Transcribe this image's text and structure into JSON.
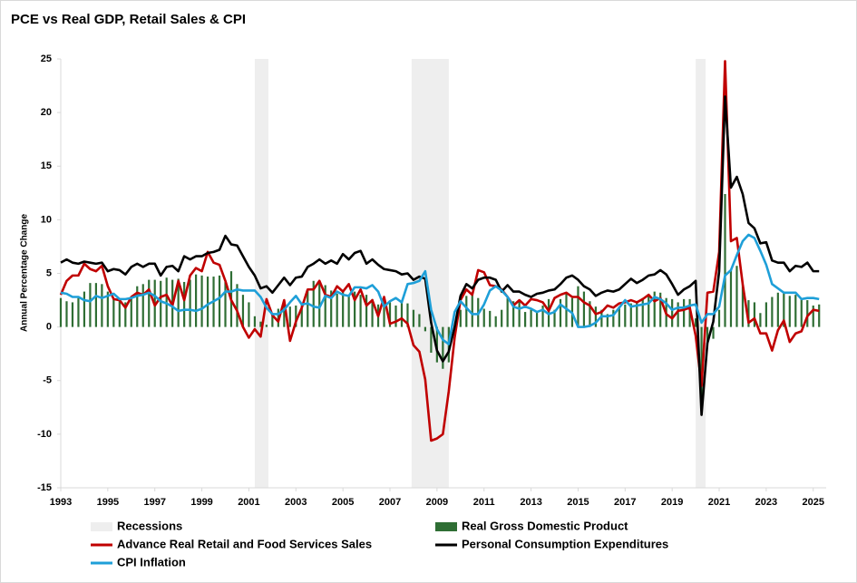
{
  "chart_data": {
    "type": "combo",
    "title": "PCE vs Real GDP, Retail Sales & CPI",
    "y_label": "Annual Percentage Change",
    "xlim": [
      1993,
      2025.55
    ],
    "ylim": [
      -15,
      25
    ],
    "xticks": [
      1993,
      1995,
      1997,
      1999,
      2001,
      2003,
      2005,
      2007,
      2009,
      2011,
      2013,
      2015,
      2017,
      2019,
      2021,
      2023,
      2025
    ],
    "yticks": [
      -15,
      -10,
      -5,
      0,
      5,
      10,
      15,
      20,
      25
    ],
    "recessions": {
      "name": "Recessions",
      "color": "#eeeeee",
      "ranges": [
        [
          2001.25,
          2001.83
        ],
        [
          2007.92,
          2009.5
        ],
        [
          2020.0,
          2020.42
        ]
      ]
    },
    "x": [
      1993,
      1993.25,
      1993.5,
      1993.75,
      1994,
      1994.25,
      1994.5,
      1994.75,
      1995,
      1995.25,
      1995.5,
      1995.75,
      1996,
      1996.25,
      1996.5,
      1996.75,
      1997,
      1997.25,
      1997.5,
      1997.75,
      1998,
      1998.25,
      1998.5,
      1998.75,
      1999,
      1999.25,
      1999.5,
      1999.75,
      2000,
      2000.25,
      2000.5,
      2000.75,
      2001,
      2001.25,
      2001.5,
      2001.75,
      2002,
      2002.25,
      2002.5,
      2002.75,
      2003,
      2003.25,
      2003.5,
      2003.75,
      2004,
      2004.25,
      2004.5,
      2004.75,
      2005,
      2005.25,
      2005.5,
      2005.75,
      2006,
      2006.25,
      2006.5,
      2006.75,
      2007,
      2007.25,
      2007.5,
      2007.75,
      2008,
      2008.25,
      2008.5,
      2008.75,
      2009,
      2009.25,
      2009.5,
      2009.75,
      2010,
      2010.25,
      2010.5,
      2010.75,
      2011,
      2011.25,
      2011.5,
      2011.75,
      2012,
      2012.25,
      2012.5,
      2012.75,
      2013,
      2013.25,
      2013.5,
      2013.75,
      2014,
      2014.25,
      2014.5,
      2014.75,
      2015,
      2015.25,
      2015.5,
      2015.75,
      2016,
      2016.25,
      2016.5,
      2016.75,
      2017,
      2017.25,
      2017.5,
      2017.75,
      2018,
      2018.25,
      2018.5,
      2018.75,
      2019,
      2019.25,
      2019.5,
      2019.75,
      2020,
      2020.25,
      2020.5,
      2020.75,
      2021,
      2021.25,
      2021.5,
      2021.75,
      2022,
      2022.25,
      2022.5,
      2022.75,
      2023,
      2023.25,
      2023.5,
      2023.75,
      2024,
      2024.25,
      2024.5,
      2024.75,
      2025,
      2025.25
    ],
    "series": [
      {
        "name": "Real Gross Domestic Product",
        "type": "bar",
        "color": "#2f6e34",
        "values": [
          2.7,
          2.4,
          2.3,
          2.7,
          3.3,
          4.1,
          4.1,
          4.0,
          3.3,
          2.6,
          2.4,
          2.3,
          2.7,
          3.8,
          4.0,
          4.4,
          4.4,
          4.3,
          4.6,
          4.4,
          4.5,
          4.2,
          4.4,
          4.9,
          4.8,
          4.7,
          4.7,
          4.8,
          4.2,
          5.2,
          4.0,
          3.0,
          2.3,
          1.0,
          0.5,
          0.2,
          1.3,
          1.7,
          2.0,
          1.9,
          2.0,
          2.2,
          3.4,
          4.3,
          4.2,
          3.9,
          3.4,
          3.1,
          3.4,
          3.0,
          3.3,
          3.0,
          3.0,
          2.6,
          2.1,
          2.7,
          2.3,
          2.0,
          2.3,
          2.2,
          1.6,
          1.2,
          -0.4,
          -2.4,
          -3.3,
          -3.9,
          -3.3,
          -0.2,
          1.6,
          2.9,
          3.1,
          2.7,
          1.7,
          1.5,
          1.0,
          1.6,
          2.7,
          2.4,
          2.5,
          1.4,
          1.6,
          1.4,
          2.0,
          2.6,
          1.6,
          2.6,
          3.1,
          2.7,
          3.8,
          3.3,
          2.4,
          1.9,
          1.6,
          1.2,
          1.6,
          1.9,
          2.1,
          2.2,
          2.3,
          2.7,
          3.0,
          3.3,
          3.2,
          2.7,
          2.6,
          2.3,
          2.6,
          2.6,
          0.8,
          -7.5,
          -1.5,
          -1.1,
          1.6,
          12.4,
          5.3,
          5.7,
          4.0,
          2.5,
          2.3,
          1.3,
          2.3,
          2.8,
          3.2,
          3.2,
          2.9,
          3.0,
          2.7,
          2.5,
          2.0,
          2.1
        ]
      },
      {
        "name": "Advance Real Retail and Food Services Sales",
        "type": "line",
        "color": "#c00000",
        "values": [
          3.0,
          4.3,
          4.8,
          4.8,
          5.9,
          5.4,
          5.2,
          5.7,
          3.8,
          2.6,
          2.5,
          1.8,
          2.8,
          3.2,
          3.0,
          3.5,
          2.0,
          2.8,
          3.0,
          2.0,
          4.3,
          2.5,
          4.8,
          5.5,
          5.2,
          7.0,
          6.0,
          5.8,
          4.3,
          2.5,
          1.5,
          0.0,
          -1.0,
          -0.2,
          -0.9,
          2.6,
          1.1,
          0.5,
          2.5,
          -1.3,
          0.5,
          1.8,
          3.5,
          3.5,
          4.3,
          3.0,
          2.8,
          3.8,
          3.3,
          4.0,
          2.5,
          3.5,
          2.0,
          2.5,
          1.0,
          2.8,
          0.3,
          0.5,
          0.8,
          0.3,
          -1.7,
          -2.3,
          -4.9,
          -10.6,
          -10.4,
          -10.0,
          -6.0,
          -1.0,
          2.5,
          3.5,
          3.0,
          5.3,
          5.1,
          3.9,
          3.8,
          3.5,
          2.8,
          2.0,
          2.5,
          2.0,
          2.6,
          2.5,
          2.3,
          1.5,
          2.7,
          3.0,
          3.2,
          2.8,
          2.8,
          2.3,
          2.0,
          1.2,
          1.4,
          2.0,
          1.8,
          2.2,
          2.3,
          2.5,
          2.3,
          2.6,
          3.0,
          2.4,
          2.7,
          1.2,
          0.8,
          1.5,
          1.6,
          1.8,
          -0.8,
          -5.5,
          3.2,
          3.3,
          7.0,
          24.8,
          8.0,
          8.3,
          4.0,
          0.4,
          0.8,
          -0.6,
          -0.6,
          -2.2,
          -0.3,
          0.6,
          -1.4,
          -0.6,
          -0.4,
          1.0,
          1.6,
          1.5
        ]
      },
      {
        "name": "Personal Consumption Expenditures",
        "type": "line",
        "color": "#000000",
        "values": [
          6.0,
          6.3,
          6.0,
          5.9,
          6.1,
          6.0,
          5.9,
          6.0,
          5.2,
          5.4,
          5.3,
          4.9,
          5.6,
          5.9,
          5.6,
          5.9,
          5.9,
          4.8,
          5.6,
          5.7,
          5.2,
          6.6,
          6.3,
          6.6,
          6.6,
          6.9,
          7.0,
          7.2,
          8.5,
          7.7,
          7.6,
          6.6,
          5.6,
          4.8,
          3.6,
          3.8,
          3.2,
          3.9,
          4.6,
          3.9,
          4.6,
          4.7,
          5.6,
          5.9,
          6.3,
          5.9,
          6.2,
          5.9,
          6.8,
          6.3,
          6.9,
          7.1,
          5.9,
          6.3,
          5.8,
          5.4,
          5.3,
          5.2,
          4.9,
          5.0,
          4.4,
          4.7,
          4.5,
          0.4,
          -2.2,
          -3.2,
          -2.3,
          0.0,
          2.9,
          4.0,
          3.6,
          4.4,
          4.6,
          4.6,
          4.4,
          3.3,
          3.9,
          3.3,
          3.3,
          3.0,
          2.8,
          3.1,
          3.2,
          3.4,
          3.5,
          4.0,
          4.6,
          4.8,
          4.4,
          3.8,
          3.5,
          2.9,
          3.2,
          3.4,
          3.3,
          3.5,
          4.0,
          4.5,
          4.1,
          4.4,
          4.8,
          4.9,
          5.3,
          4.9,
          4.0,
          3.0,
          3.5,
          3.8,
          4.3,
          -8.2,
          -1.5,
          0.5,
          5.2,
          21.5,
          13.0,
          14.0,
          12.4,
          9.7,
          9.2,
          7.8,
          7.9,
          6.2,
          6.0,
          6.0,
          5.2,
          5.7,
          5.6,
          6.0,
          5.2,
          5.2
        ]
      },
      {
        "name": "CPI Inflation",
        "type": "line",
        "color": "#1e9fd8",
        "values": [
          3.2,
          3.1,
          2.8,
          2.8,
          2.5,
          2.4,
          2.9,
          2.7,
          2.9,
          3.1,
          2.6,
          2.6,
          2.7,
          2.9,
          3.0,
          3.2,
          2.9,
          2.4,
          2.2,
          1.9,
          1.5,
          1.6,
          1.6,
          1.5,
          1.7,
          2.1,
          2.4,
          2.7,
          3.3,
          3.3,
          3.5,
          3.4,
          3.4,
          3.4,
          2.8,
          1.8,
          1.2,
          1.2,
          1.6,
          2.3,
          2.9,
          2.1,
          2.2,
          1.9,
          1.8,
          2.9,
          2.7,
          3.3,
          3.0,
          2.9,
          3.7,
          3.7,
          3.6,
          3.9,
          3.3,
          1.9,
          2.4,
          2.7,
          2.3,
          4.0,
          4.1,
          4.3,
          5.2,
          1.6,
          -0.2,
          -1.2,
          -1.6,
          1.4,
          2.4,
          1.8,
          1.2,
          1.2,
          2.1,
          3.4,
          3.8,
          3.4,
          2.8,
          1.9,
          1.7,
          1.9,
          1.7,
          1.4,
          1.6,
          1.2,
          1.4,
          2.1,
          1.7,
          1.3,
          0.0,
          0.0,
          0.1,
          0.4,
          1.0,
          1.0,
          1.1,
          1.8,
          2.5,
          1.9,
          2.0,
          2.1,
          2.2,
          2.8,
          2.6,
          2.2,
          1.6,
          1.8,
          1.8,
          2.0,
          2.1,
          0.4,
          1.2,
          1.2,
          1.9,
          4.8,
          5.3,
          6.7,
          8.0,
          8.6,
          8.3,
          7.1,
          5.8,
          4.0,
          3.6,
          3.2,
          3.2,
          3.2,
          2.6,
          2.7,
          2.7,
          2.6
        ]
      }
    ]
  }
}
